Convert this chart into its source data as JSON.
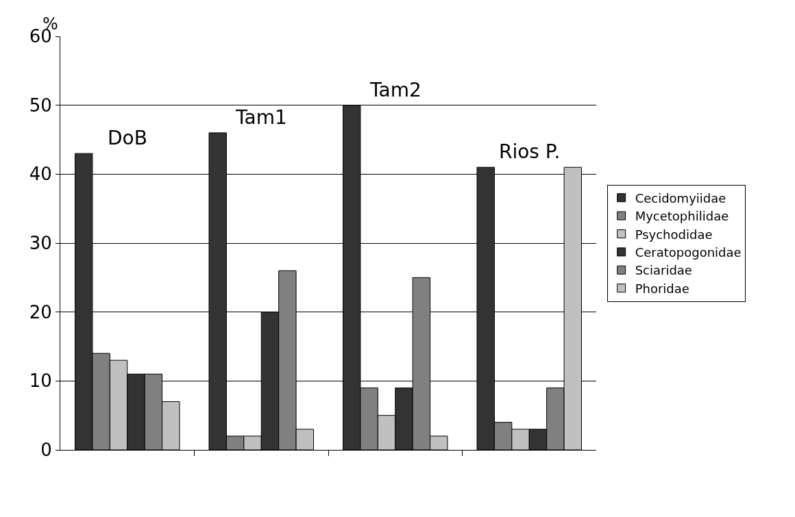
{
  "chart_data": {
    "type": "bar",
    "ylabel": "%",
    "categories": [
      "DoB",
      "Tam1",
      "Tam2",
      "Rios P."
    ],
    "series": [
      {
        "name": "Cecidomyiidae",
        "color": "#333333",
        "values": [
          43,
          46,
          50,
          41
        ]
      },
      {
        "name": "Mycetophilidae",
        "color": "#808080",
        "values": [
          14,
          2,
          9,
          4
        ]
      },
      {
        "name": "Psychodidae",
        "color": "#c0c0c0",
        "values": [
          13,
          2,
          5,
          3
        ]
      },
      {
        "name": "Ceratopogonidae",
        "color": "#333333",
        "values": [
          11,
          20,
          9,
          3
        ]
      },
      {
        "name": "Sciaridae",
        "color": "#808080",
        "values": [
          11,
          26,
          25,
          9
        ]
      },
      {
        "name": "Phoridae",
        "color": "#c0c0c0",
        "values": [
          7,
          3,
          2,
          41
        ]
      }
    ],
    "ylim": [
      0,
      60
    ],
    "yticks": [
      0,
      10,
      20,
      30,
      40,
      50,
      60
    ],
    "grid": "y",
    "legend": "right",
    "tick_labels": "y"
  }
}
